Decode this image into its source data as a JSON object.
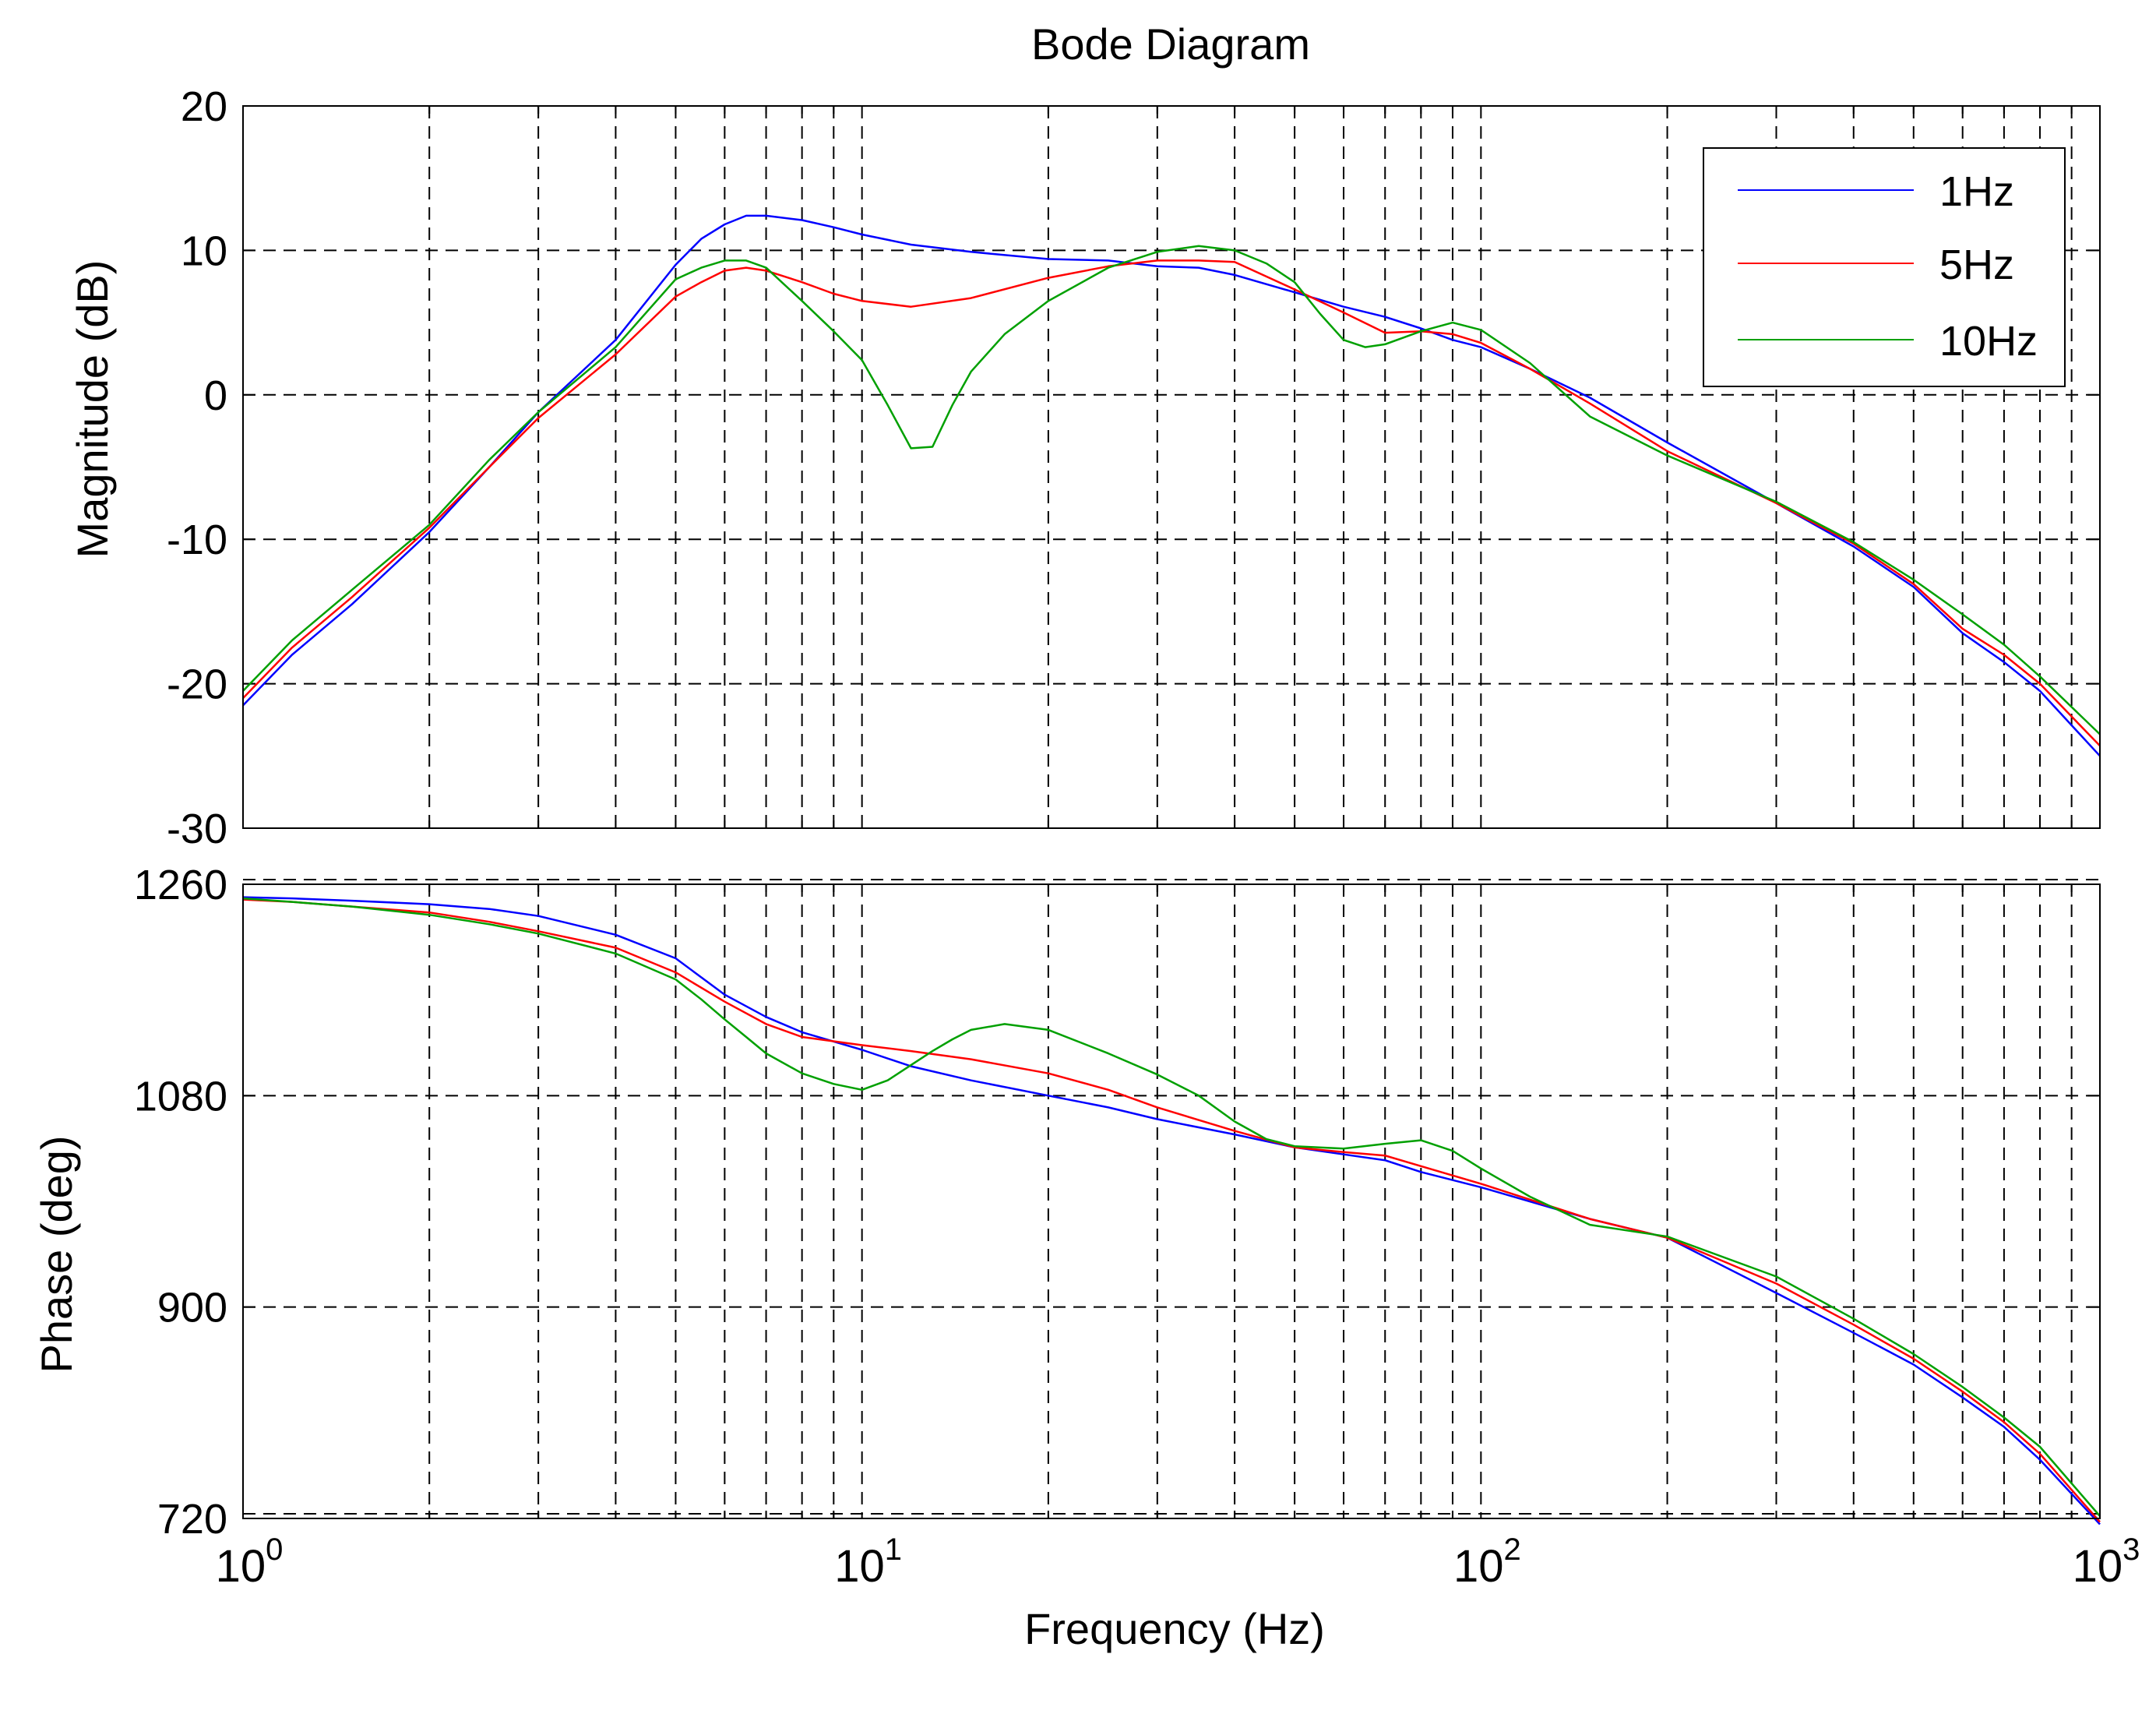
{
  "chart_data": [
    {
      "type": "line",
      "title": "Bode Diagram",
      "xlabel": "Frequency  (Hz)",
      "ylabel": "Magnitude (dB)",
      "xscale": "log",
      "xlim": [
        1,
        1000
      ],
      "ylim": [
        -30,
        20
      ],
      "yticks": [
        "20",
        "10",
        "0",
        "-10",
        "-20",
        "-30"
      ],
      "grid": true,
      "legend_position": "top-right",
      "series": [
        {
          "name": "1Hz",
          "color": "#0000ff",
          "x": [
            1,
            1.2,
            1.5,
            2,
            2.5,
            3,
            4,
            5,
            5.5,
            6,
            6.5,
            7,
            8,
            9,
            10,
            12,
            15,
            20,
            25,
            30,
            35,
            40,
            50,
            60,
            70,
            80,
            90,
            100,
            120,
            150,
            200,
            300,
            400,
            500,
            600,
            700,
            800,
            1000
          ],
          "values": [
            -21.5,
            -18,
            -14.5,
            -9.5,
            -5,
            -1.2,
            3.8,
            9,
            10.8,
            11.8,
            12.4,
            12.4,
            12.1,
            11.6,
            11.1,
            10.4,
            9.9,
            9.4,
            9.3,
            8.9,
            8.8,
            8.3,
            7.1,
            6.1,
            5.4,
            4.6,
            3.8,
            3.3,
            1.8,
            -0.2,
            -3.3,
            -7.5,
            -10.5,
            -13.3,
            -16.5,
            -18.5,
            -20.5,
            -25
          ]
        },
        {
          "name": "5Hz",
          "color": "#ff0000",
          "x": [
            1,
            1.2,
            1.5,
            2,
            2.5,
            3,
            4,
            5,
            5.5,
            6,
            6.5,
            7,
            8,
            9,
            10,
            12,
            15,
            20,
            25,
            30,
            35,
            40,
            50,
            60,
            70,
            80,
            90,
            100,
            120,
            150,
            200,
            300,
            400,
            500,
            600,
            700,
            800,
            1000
          ],
          "values": [
            -21,
            -17.5,
            -14,
            -9.2,
            -5,
            -1.6,
            2.8,
            6.8,
            7.8,
            8.6,
            8.8,
            8.6,
            7.8,
            7.0,
            6.5,
            6.1,
            6.7,
            8.1,
            8.9,
            9.3,
            9.3,
            9.2,
            7.3,
            5.7,
            4.3,
            4.4,
            4.2,
            3.6,
            1.8,
            -0.6,
            -3.9,
            -7.5,
            -10.3,
            -13.1,
            -16.2,
            -18,
            -20,
            -24.3
          ]
        },
        {
          "name": "10Hz",
          "color": "#00a000",
          "x": [
            1,
            1.2,
            1.5,
            2,
            2.5,
            3,
            4,
            5,
            5.5,
            6,
            6.5,
            7,
            8,
            9,
            10,
            11,
            12,
            13,
            14,
            15,
            17,
            20,
            25,
            30,
            35,
            40,
            45,
            50,
            55,
            60,
            65,
            70,
            80,
            90,
            100,
            120,
            150,
            200,
            300,
            400,
            500,
            600,
            700,
            800,
            1000
          ],
          "values": [
            -20.5,
            -17,
            -13.5,
            -9,
            -4.5,
            -1.2,
            3.3,
            8,
            8.8,
            9.3,
            9.3,
            8.8,
            6.5,
            4.4,
            2.4,
            -0.7,
            -3.7,
            -3.6,
            -0.7,
            1.6,
            4.2,
            6.5,
            8.8,
            9.9,
            10.3,
            10.0,
            9.1,
            7.8,
            5.6,
            3.8,
            3.3,
            3.5,
            4.4,
            5.0,
            4.5,
            2.2,
            -1.5,
            -4.2,
            -7.4,
            -10.2,
            -12.8,
            -15.2,
            -17.3,
            -19.5,
            -23.5
          ]
        }
      ]
    },
    {
      "type": "line",
      "title": "",
      "xlabel": "Frequency  (Hz)",
      "ylabel": "Phase (deg)",
      "xscale": "log",
      "xlim": [
        1,
        1000
      ],
      "ylim": [
        720,
        1260
      ],
      "yticks": [
        "1260",
        "1080",
        "900",
        "720"
      ],
      "xticks": [
        {
          "value": 1,
          "base": "10",
          "exp": "0"
        },
        {
          "value": 10,
          "base": "10",
          "exp": "1"
        },
        {
          "value": 100,
          "base": "10",
          "exp": "2"
        },
        {
          "value": 1000,
          "base": "10",
          "exp": "3"
        }
      ],
      "grid": true,
      "series": [
        {
          "name": "1Hz",
          "color": "#0000ff",
          "x": [
            1,
            1.2,
            1.5,
            2,
            2.5,
            3,
            4,
            5,
            6,
            7,
            8,
            10,
            12,
            15,
            20,
            25,
            30,
            40,
            50,
            60,
            70,
            80,
            100,
            150,
            200,
            300,
            400,
            500,
            600,
            700,
            800,
            1000
          ],
          "values": [
            1249,
            1248,
            1246,
            1243,
            1239,
            1233,
            1217,
            1197,
            1166,
            1147,
            1134,
            1119,
            1105,
            1093,
            1080,
            1070,
            1060,
            1047,
            1036,
            1030,
            1025,
            1015,
            1002,
            975,
            959,
            912,
            878,
            851,
            823,
            798,
            770,
            715
          ]
        },
        {
          "name": "5Hz",
          "color": "#ff0000",
          "x": [
            1,
            1.2,
            1.5,
            2,
            2.5,
            3,
            4,
            5,
            6,
            7,
            8,
            10,
            12,
            15,
            20,
            25,
            30,
            40,
            50,
            60,
            70,
            80,
            100,
            150,
            200,
            300,
            400,
            500,
            600,
            700,
            800,
            1000
          ],
          "values": [
            1247,
            1245,
            1241,
            1236,
            1228,
            1220,
            1206,
            1185,
            1160,
            1141,
            1130,
            1123,
            1118,
            1111,
            1099,
            1085,
            1070,
            1050,
            1036,
            1032,
            1029,
            1020,
            1005,
            975,
            959,
            920,
            885,
            856,
            828,
            802,
            775,
            717
          ]
        },
        {
          "name": "10Hz",
          "color": "#00a000",
          "x": [
            1,
            1.2,
            1.5,
            2,
            2.5,
            3,
            4,
            5,
            5.5,
            6,
            6.5,
            7,
            8,
            9,
            10,
            11,
            12,
            13,
            14,
            15,
            17,
            20,
            25,
            30,
            35,
            40,
            45,
            50,
            60,
            70,
            80,
            90,
            100,
            120,
            150,
            200,
            300,
            400,
            500,
            600,
            700,
            800,
            1000
          ],
          "values": [
            1248,
            1245,
            1241,
            1234,
            1226,
            1218,
            1201,
            1179,
            1162,
            1145,
            1130,
            1116,
            1099,
            1090,
            1085,
            1093,
            1106,
            1118,
            1128,
            1136,
            1141,
            1136,
            1116,
            1098,
            1080,
            1058,
            1043,
            1037,
            1035,
            1039,
            1042,
            1033,
            1018,
            994,
            970,
            960,
            926,
            890,
            860,
            832,
            806,
            781,
            722
          ]
        }
      ]
    }
  ]
}
